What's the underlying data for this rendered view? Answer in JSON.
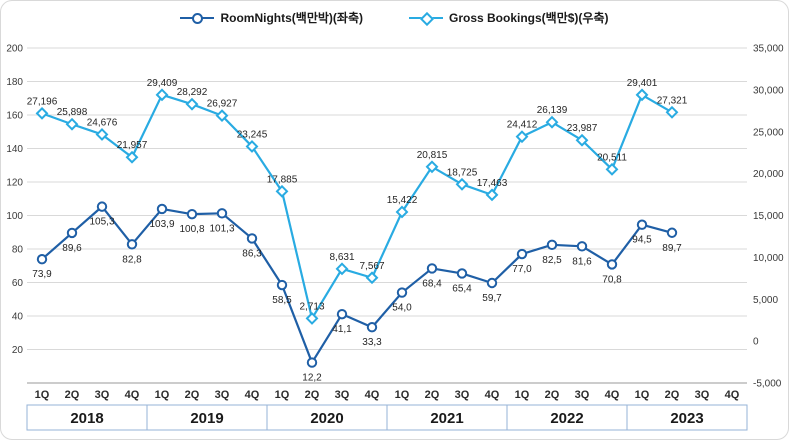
{
  "legend": {
    "series1_label": "RoomNights(백만박)(좌축)",
    "series2_label": "Gross Bookings(백만$)(우축)"
  },
  "colors": {
    "roomnights": "#1F5FA6",
    "gross_bookings": "#29ABE2",
    "grid": "#D9D9D9",
    "axis_line": "#9A9A9A",
    "axis_text": "#3A3A3A",
    "data_label": "#262626",
    "year_border": "#95B3D7",
    "year_text": "#1A1A1A"
  },
  "chart_data": {
    "type": "line",
    "x_quarters": [
      "1Q",
      "2Q",
      "3Q",
      "4Q",
      "1Q",
      "2Q",
      "3Q",
      "4Q",
      "1Q",
      "2Q",
      "3Q",
      "4Q",
      "1Q",
      "2Q",
      "3Q",
      "4Q",
      "1Q",
      "2Q",
      "3Q",
      "4Q",
      "1Q",
      "2Q",
      "3Q",
      "4Q"
    ],
    "year_groups": [
      {
        "year": "2018",
        "quarters": 4
      },
      {
        "year": "2019",
        "quarters": 4
      },
      {
        "year": "2020",
        "quarters": 4
      },
      {
        "year": "2021",
        "quarters": 4
      },
      {
        "year": "2022",
        "quarters": 4
      },
      {
        "year": "2023",
        "quarters": 4
      }
    ],
    "left_axis": {
      "min": 0,
      "max": 200,
      "step": 20,
      "tick_labels": [
        "200",
        "180",
        "160",
        "140",
        "120",
        "100",
        "80",
        "60",
        "40",
        "20"
      ]
    },
    "right_axis": {
      "min": -5000,
      "max": 35000,
      "step": 5000,
      "tick_labels": [
        "35,000",
        "30,000",
        "25,000",
        "20,000",
        "15,000",
        "10,000",
        "5,000",
        "0",
        "-5,000"
      ]
    },
    "series": [
      {
        "name": "RoomNights(백만박)(좌축)",
        "axis": "left",
        "marker": "circle",
        "values": [
          73.9,
          89.6,
          105.3,
          82.8,
          103.9,
          100.8,
          101.3,
          86.3,
          58.5,
          12.2,
          41.1,
          33.3,
          54.0,
          68.4,
          65.4,
          59.7,
          77.0,
          82.5,
          81.6,
          70.8,
          94.5,
          89.7,
          null,
          null
        ],
        "labels": [
          "73,9",
          "89,6",
          "105,3",
          "82,8",
          "103,9",
          "100,8",
          "101,3",
          "86,3",
          "58,5",
          "12,2",
          "41,1",
          "33,3",
          "54,0",
          "68,4",
          "65,4",
          "59,7",
          "77,0",
          "82,5",
          "81,6",
          "70,8",
          "94,5",
          "89,7",
          null,
          null
        ],
        "label_position": "below"
      },
      {
        "name": "Gross Bookings(백만$)(우축)",
        "axis": "right",
        "marker": "diamond",
        "values": [
          27196,
          25898,
          24676,
          21957,
          29409,
          28292,
          26927,
          23245,
          17885,
          2713,
          8631,
          7567,
          15422,
          20815,
          18725,
          17463,
          24412,
          26139,
          23987,
          20511,
          29401,
          27321,
          null,
          null
        ],
        "labels": [
          "27,196",
          "25,898",
          "24,676",
          "21,957",
          "29,409",
          "28,292",
          "26,927",
          "23,245",
          "17,885",
          "2,713",
          "8,631",
          "7,567",
          "15,422",
          "20,815",
          "18,725",
          "17,463",
          "24,412",
          "26,139",
          "23,987",
          "20,511",
          "29,401",
          "27,321",
          null,
          null
        ],
        "label_position": "above"
      }
    ]
  }
}
